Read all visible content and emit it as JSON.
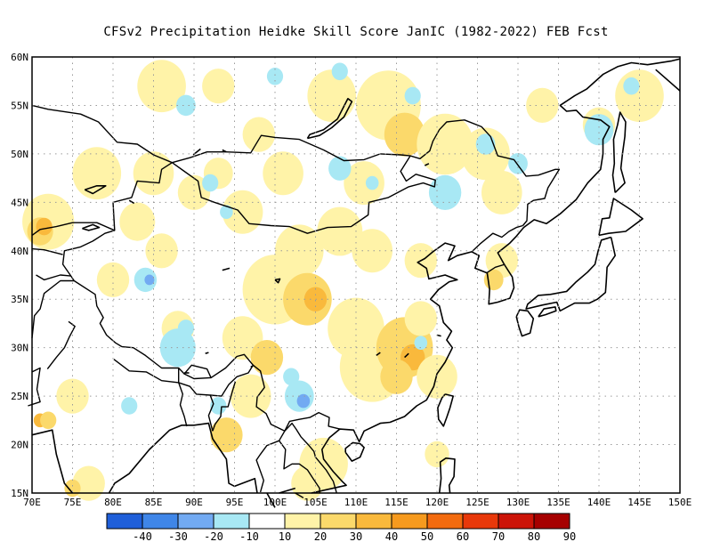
{
  "title": "CFSv2  Precipitation Heidke Skill Score JanIC (1982-2022) FEB Fcst",
  "map": {
    "lon_labels": [
      "70E",
      "75E",
      "80E",
      "85E",
      "90E",
      "95E",
      "100E",
      "105E",
      "110E",
      "115E",
      "120E",
      "125E",
      "130E",
      "135E",
      "140E",
      "145E",
      "150E"
    ],
    "lat_labels": [
      "60N",
      "55N",
      "50N",
      "45N",
      "40N",
      "35N",
      "30N",
      "25N",
      "20N",
      "15N"
    ],
    "lon_range": [
      70,
      150
    ],
    "lat_range": [
      15,
      60
    ],
    "grid": "dotted"
  },
  "colorbar": {
    "labels": [
      "-40",
      "-30",
      "-20",
      "-10",
      "10",
      "20",
      "30",
      "40",
      "50",
      "60",
      "70",
      "80",
      "90"
    ],
    "colors": [
      "#1f5fd9",
      "#3f86e8",
      "#72aaf2",
      "#a8e8f4",
      "#ffffff",
      "#fff3a8",
      "#fbd96b",
      "#f9b93c",
      "#f69a1e",
      "#f36b0f",
      "#e8380a",
      "#cc1408",
      "#a60000"
    ]
  }
}
